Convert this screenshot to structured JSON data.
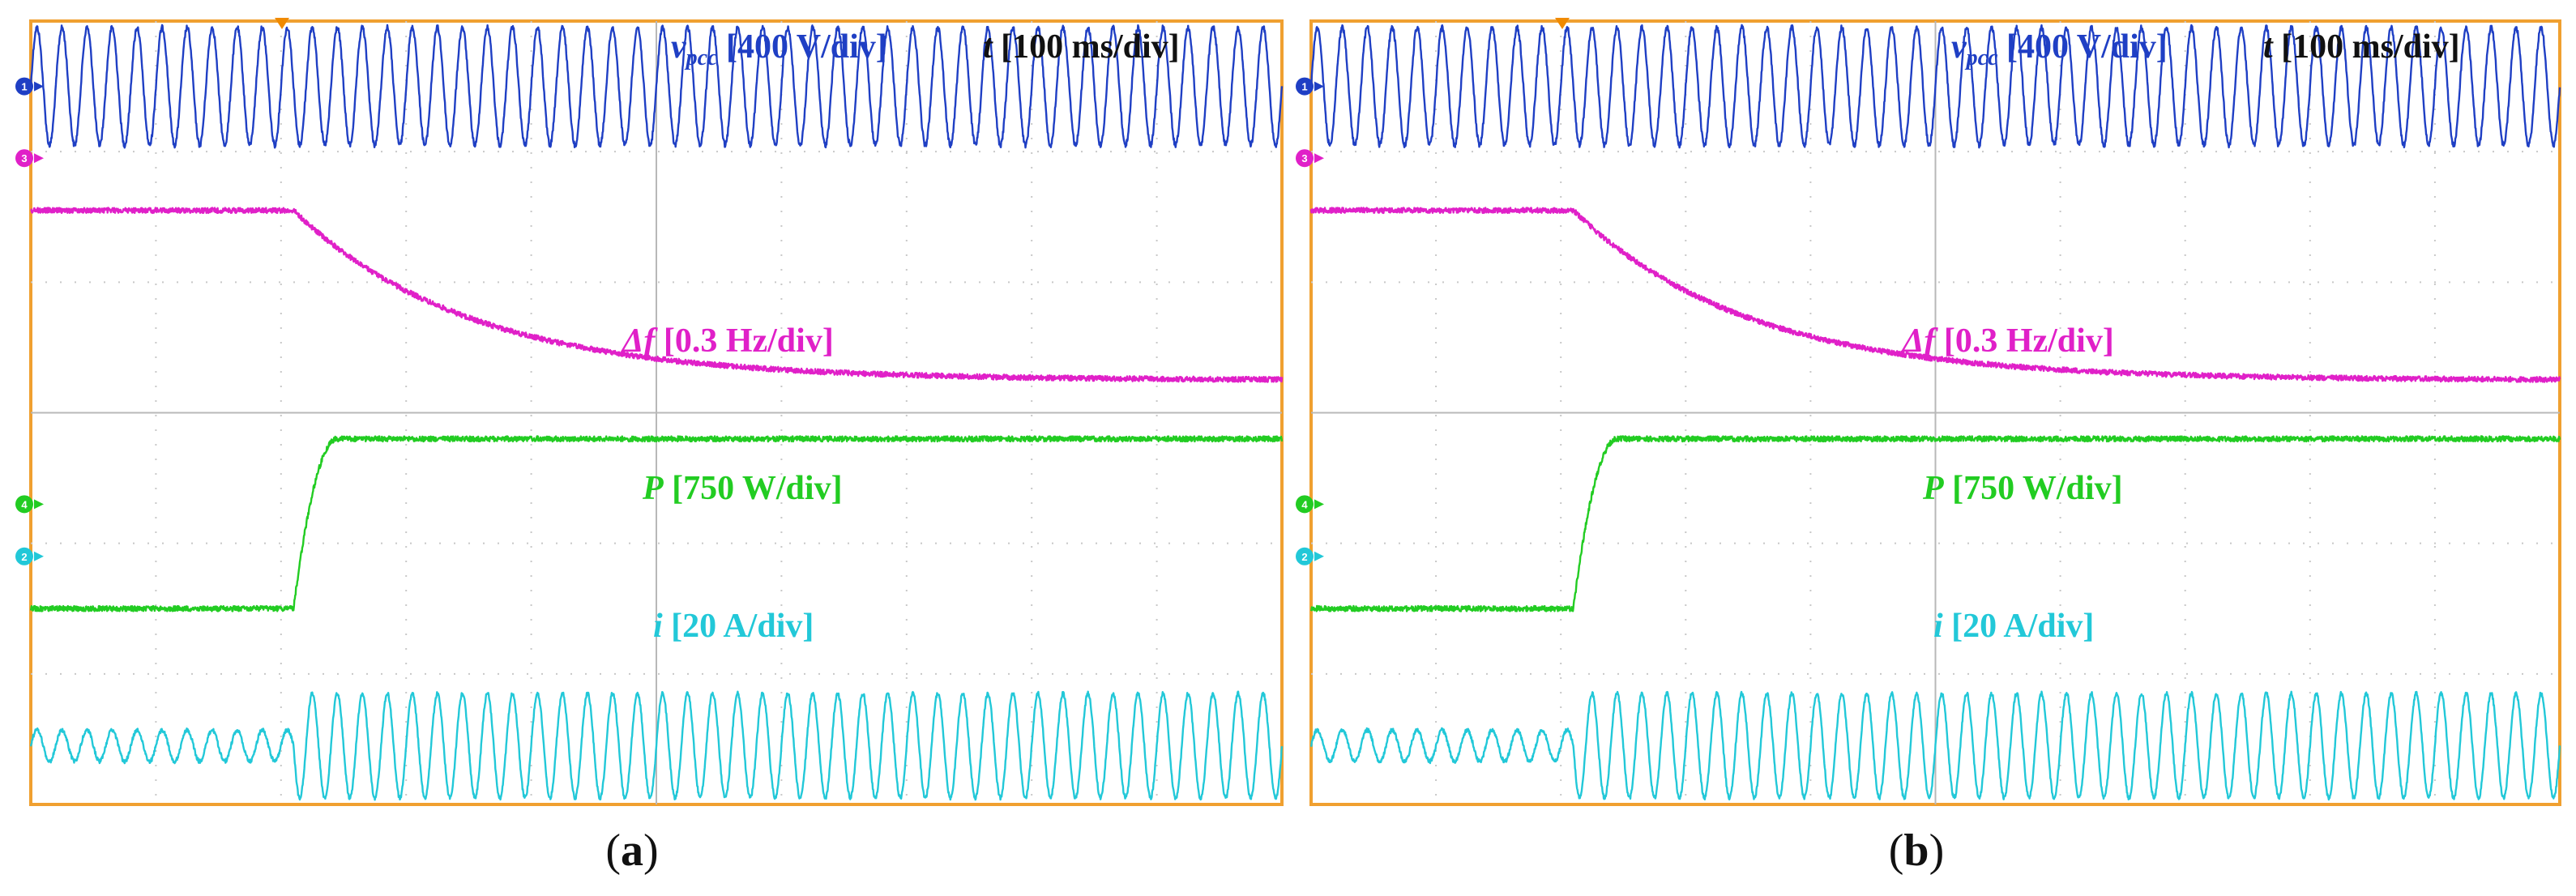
{
  "chart_data": [
    {
      "type": "line",
      "panel_label_parts": [
        "(",
        "a",
        ")"
      ],
      "time_label": {
        "symbol": "t",
        "scale": "[100 ms/div]"
      },
      "channels": [
        {
          "id": "1",
          "symbol": "v",
          "subscript": "pcc",
          "scale": "[400 V/div]",
          "color": "#1f3fc4",
          "kind": "sine",
          "amplitude_div": 0.45,
          "offset_div": 0.5,
          "cycles_total": 50
        },
        {
          "id": "3",
          "symbol": "Δf",
          "subscript": "",
          "scale": "[0.3 Hz/div]",
          "color": "#e020c8",
          "kind": "frequency",
          "level_before_div": 1.45,
          "level_after_div": 2.75,
          "step_time_div": 2.1,
          "tau_div": 1.4
        },
        {
          "id": "4",
          "symbol": "P",
          "subscript": "",
          "scale": "[750 W/div]",
          "color": "#22cc22",
          "kind": "step",
          "level_before_div": 4.5,
          "level_after_div": 3.2,
          "step_time_div": 2.1
        },
        {
          "id": "2",
          "symbol": "i",
          "subscript": "",
          "scale": "[20 A/div]",
          "color": "#22c8d8",
          "kind": "sine_step",
          "amp_before_div": 0.12,
          "amp_after_div": 0.4,
          "center_div": 5.55,
          "step_time_div": 2.1,
          "cycles_total": 50
        }
      ],
      "grid": {
        "h_divisions": 10,
        "v_divisions": 6
      }
    },
    {
      "type": "line",
      "panel_label_parts": [
        "(",
        "b",
        ")"
      ],
      "time_label": {
        "symbol": "t",
        "scale": "[100 ms/div]"
      },
      "channels": [
        {
          "id": "1",
          "symbol": "v",
          "subscript": "pcc",
          "scale": "[400 V/div]",
          "color": "#1f3fc4",
          "kind": "sine",
          "amplitude_div": 0.45,
          "offset_div": 0.5,
          "cycles_total": 50
        },
        {
          "id": "3",
          "symbol": "Δf",
          "subscript": "",
          "scale": "[0.3 Hz/div]",
          "color": "#e020c8",
          "kind": "frequency",
          "level_before_div": 1.45,
          "level_after_div": 2.75,
          "step_time_div": 2.1,
          "tau_div": 1.4
        },
        {
          "id": "4",
          "symbol": "P",
          "subscript": "",
          "scale": "[750 W/div]",
          "color": "#22cc22",
          "kind": "step",
          "level_before_div": 4.5,
          "level_after_div": 3.2,
          "step_time_div": 2.1
        },
        {
          "id": "2",
          "symbol": "i",
          "subscript": "",
          "scale": "[20 A/div]",
          "color": "#22c8d8",
          "kind": "sine_step",
          "amp_before_div": 0.12,
          "amp_after_div": 0.4,
          "center_div": 5.55,
          "step_time_div": 2.1,
          "cycles_total": 50
        }
      ],
      "grid": {
        "h_divisions": 10,
        "v_divisions": 6
      }
    }
  ],
  "colors": {
    "frame": "#f0a030",
    "grid_solid": "#b8b8b8",
    "grid_dot": "#c8c8c8",
    "trigger": "#f08a00"
  }
}
